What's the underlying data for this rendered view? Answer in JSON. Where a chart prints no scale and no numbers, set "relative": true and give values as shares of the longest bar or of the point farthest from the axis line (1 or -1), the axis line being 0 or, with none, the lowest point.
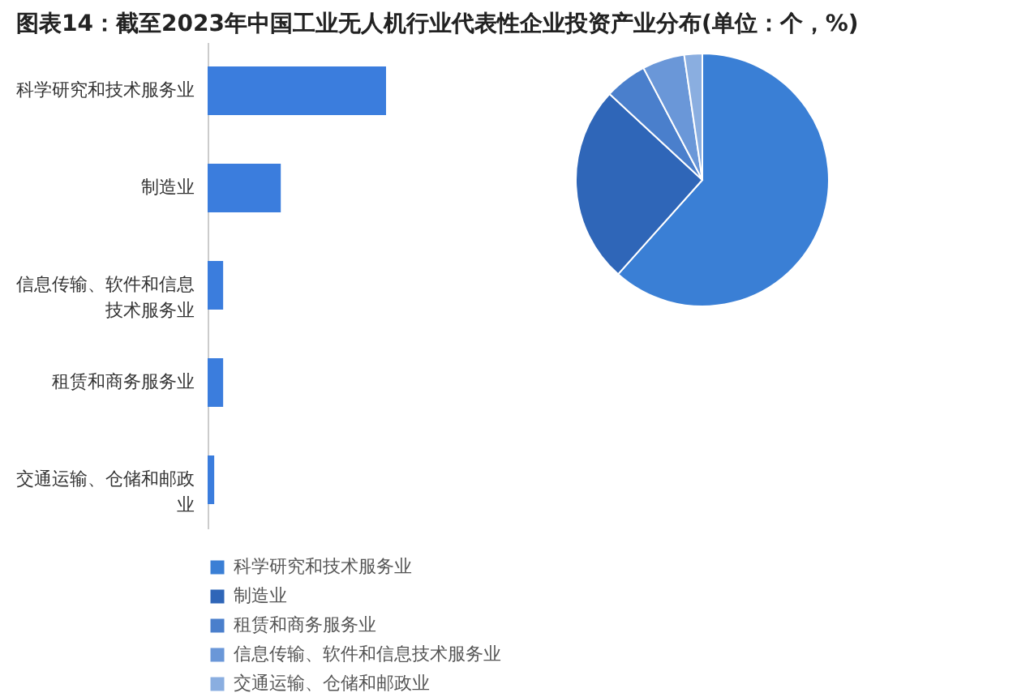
{
  "chart_data": [
    {
      "type": "bar",
      "orientation": "horizontal",
      "relative": true,
      "title": "图表14：截至2023年中国工业无人机行业代表性企业投资产业分布(单位：个，%)",
      "categories": [
        "科学研究和技术服务业",
        "制造业",
        "信息传输、软件和信息技术服务业",
        "租赁和商务服务业",
        "交通运输、仓储和邮政业"
      ],
      "values": [
        1,
        0.41,
        0.087,
        0.087,
        0.037
      ],
      "color": "#3b7ddd"
    },
    {
      "type": "pie",
      "categories": [
        "科学研究和技术服务业",
        "制造业",
        "租赁和商务服务业",
        "信息传输、软件和信息技术服务业",
        "交通运输、仓储和邮政业"
      ],
      "values": [
        61.6,
        25.3,
        5.4,
        5.4,
        2.3
      ],
      "colors": [
        "#3a7fd5",
        "#2f66b8",
        "#4a7fcc",
        "#6a97d8",
        "#8aaee0"
      ],
      "legend": "bottom"
    }
  ]
}
